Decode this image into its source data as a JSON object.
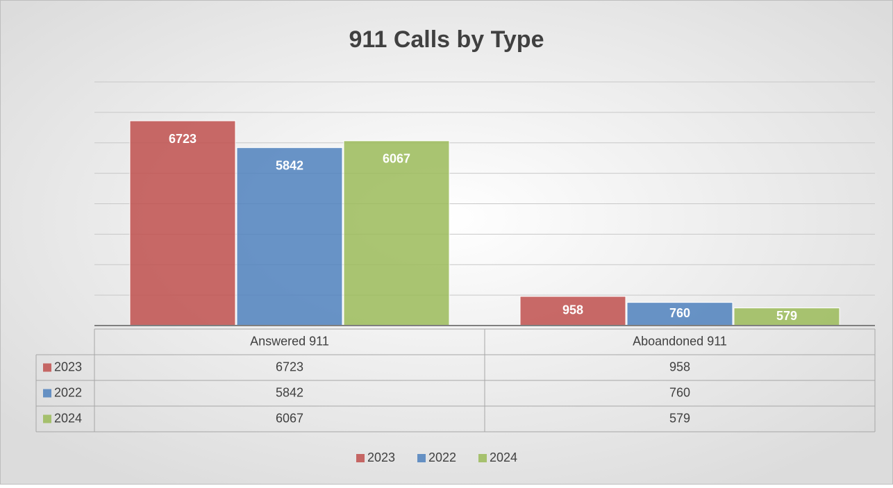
{
  "chart_data": {
    "type": "bar",
    "title": "911 Calls by Type",
    "categories": [
      "Answered 911",
      "Aboandoned 911"
    ],
    "series": [
      {
        "name": "2023",
        "color": "#c0504d",
        "values": [
          6723,
          958
        ]
      },
      {
        "name": "2022",
        "color": "#4f81bd",
        "values": [
          5842,
          760
        ]
      },
      {
        "name": "2024",
        "color": "#9bbb59",
        "values": [
          6067,
          579
        ]
      }
    ],
    "ylim": [
      0,
      8000
    ],
    "yticks": [
      0,
      1000,
      2000,
      3000,
      4000,
      5000,
      6000,
      7000,
      8000
    ],
    "grid": true,
    "legend": "bottom",
    "data_table": true
  }
}
